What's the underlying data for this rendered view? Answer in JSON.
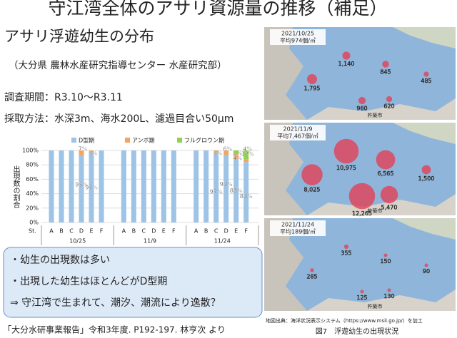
{
  "title": "守江湾全体のアサリ資源量の推移（補足）",
  "subtitle": "アサリ浮遊幼生の分布",
  "organization": "（大分県 農林水産研究指導センター 水産研究部）",
  "period": "調査期間：R3.10～R3.11",
  "method": "採取方法：水深3m、海水200L、濾過目合い50μm",
  "chart_data": {
    "type": "bar",
    "stacked": true,
    "ylabel": "出現数の割合",
    "xlabel": "St.",
    "categories": [
      "A",
      "B",
      "C",
      "D",
      "E",
      "F",
      "A",
      "B",
      "C",
      "D",
      "E",
      "F",
      "A",
      "B",
      "C",
      "D",
      "E",
      "F"
    ],
    "groups": [
      "10/25",
      "11/9",
      "11/24"
    ],
    "series": [
      {
        "name": "D型期",
        "color": "#9dc3e6",
        "values": [
          100,
          100,
          100,
          93,
          97,
          100,
          100,
          100,
          100,
          100,
          100,
          100,
          100,
          100,
          97,
          94,
          88,
          84
        ],
        "value_labels": [
          null,
          null,
          null,
          "93%",
          "97%",
          null,
          null,
          null,
          null,
          null,
          null,
          null,
          null,
          null,
          "97%",
          "94%",
          "88%",
          "84%"
        ]
      },
      {
        "name": "アンボ期",
        "color": "#f4a460",
        "values": [
          0,
          0,
          0,
          7,
          3,
          0,
          0,
          0,
          0,
          0,
          0,
          0,
          0,
          0,
          3,
          6,
          8,
          4
        ],
        "value_labels": [
          null,
          null,
          null,
          "7%",
          "3%",
          null,
          null,
          null,
          null,
          null,
          null,
          null,
          null,
          null,
          "3%",
          "6%",
          "8%",
          "4%"
        ]
      },
      {
        "name": "フルグロウン期",
        "color": "#92d050",
        "values": [
          0,
          0,
          0,
          0,
          0,
          0,
          0,
          0,
          0,
          0,
          0,
          0,
          0,
          0,
          0,
          0,
          4,
          12
        ],
        "value_labels": [
          null,
          null,
          null,
          null,
          null,
          null,
          null,
          null,
          null,
          null,
          null,
          null,
          null,
          null,
          null,
          null,
          "4%",
          "12%"
        ]
      }
    ],
    "ylim": [
      0,
      100
    ],
    "yticks": [
      {
        "value": 0,
        "label": "0%"
      },
      {
        "value": 20,
        "label": "20%"
      },
      {
        "value": 40,
        "label": "40%"
      },
      {
        "value": 60,
        "label": "60%"
      },
      {
        "value": 80,
        "label": "80%"
      },
      {
        "value": 100,
        "label": "100%"
      }
    ],
    "grid": true,
    "legend": "top"
  },
  "bullets": [
    "・幼生の出現数は多い",
    "・出現した幼生はほとんどがD型期",
    "⇒ 守江湾で生まれて、潮汐、潮流により逸散？"
  ],
  "citation": "「大分水研事業報告」令和3年度. P192-197. 林亨次 より",
  "maps": [
    {
      "date": "2021/10/25",
      "average": "平均974個/㎥",
      "place": "杵築市",
      "points": [
        {
          "value": 1140,
          "label": "1,140"
        },
        {
          "value": 845,
          "label": "845"
        },
        {
          "value": 485,
          "label": "485"
        },
        {
          "value": 1795,
          "label": "1,795"
        },
        {
          "value": 960,
          "label": "960"
        },
        {
          "value": 620,
          "label": "620"
        }
      ]
    },
    {
      "date": "2021/11/9",
      "average": "平均7,467個/㎥",
      "place": "杵築市",
      "points": [
        {
          "value": 10975,
          "label": "10,975"
        },
        {
          "value": 6565,
          "label": "6,565"
        },
        {
          "value": 1500,
          "label": "1,500"
        },
        {
          "value": 8025,
          "label": "8,025"
        },
        {
          "value": 12265,
          "label": "12,265"
        },
        {
          "value": 5470,
          "label": "5,470"
        }
      ]
    },
    {
      "date": "2021/11/24",
      "average": "平均189個/㎥",
      "place": "杵築市",
      "points": [
        {
          "value": 355,
          "label": "355"
        },
        {
          "value": 150,
          "label": "150"
        },
        {
          "value": 90,
          "label": "90"
        },
        {
          "value": 285,
          "label": "285"
        },
        {
          "value": 125,
          "label": "125"
        },
        {
          "value": 130,
          "label": "130"
        }
      ]
    }
  ],
  "map_source": "地図出典：海洋状況表示システム（https://www.msil.go.jp/）を加工",
  "figure_caption": "図7　浮遊幼生の出現状況"
}
